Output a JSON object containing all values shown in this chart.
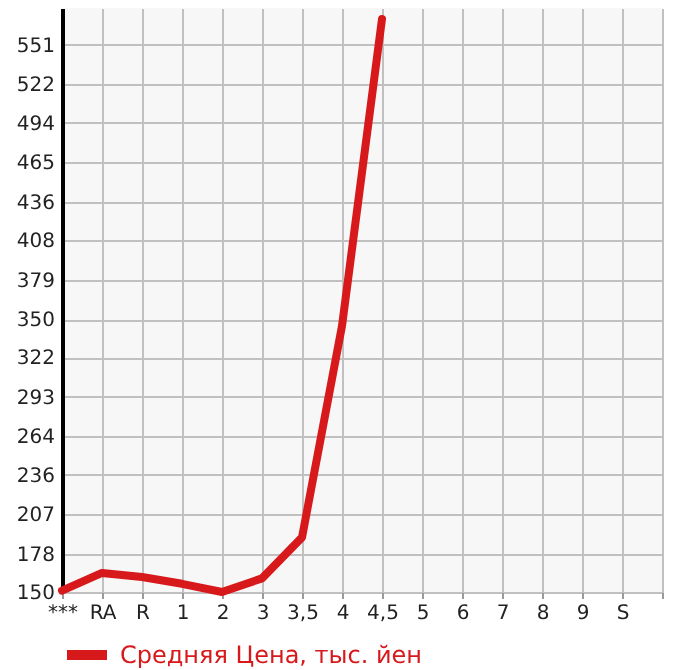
{
  "chart_data": {
    "type": "line",
    "categories": [
      "***",
      "RA",
      "R",
      "1",
      "2",
      "3",
      "3,5",
      "4",
      "4,5",
      "5",
      "6",
      "7",
      "8",
      "9",
      "S"
    ],
    "series": [
      {
        "name": "Средняя Цена, тыс. йен",
        "color": "#d7191c",
        "values": [
          151,
          164,
          161,
          156,
          150,
          160,
          190,
          345,
          570,
          null,
          null,
          null,
          null,
          null,
          null
        ]
      }
    ],
    "ylim": [
      150,
      578
    ],
    "yticks": [
      150,
      178,
      207,
      236,
      264,
      293,
      322,
      350,
      379,
      408,
      436,
      465,
      494,
      522,
      551
    ],
    "grid": true,
    "legend": "bottom",
    "marker": "none",
    "line_style": "solid"
  }
}
